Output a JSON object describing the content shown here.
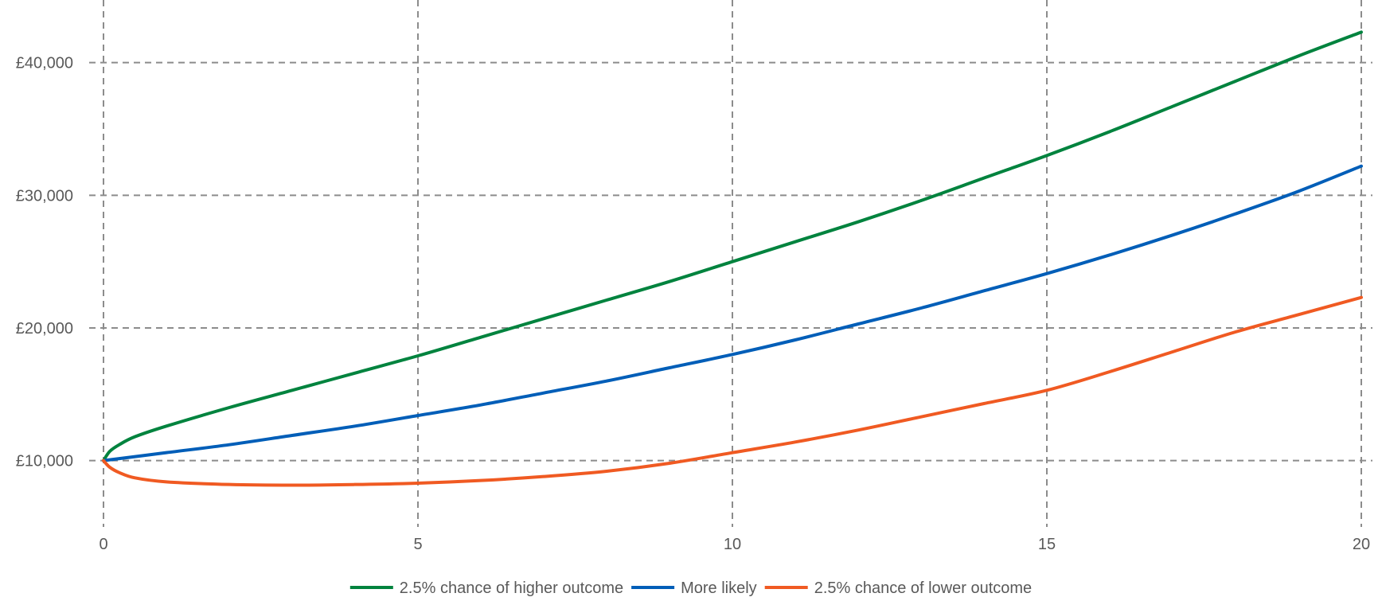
{
  "chart_data": {
    "type": "line",
    "title": "",
    "xlabel": "",
    "ylabel": "",
    "xlim": [
      0,
      20
    ],
    "ylim": [
      5000,
      44000
    ],
    "x_ticks": [
      0,
      5,
      10,
      15,
      20
    ],
    "x_tick_labels": [
      "0",
      "5",
      "10",
      "15",
      "20"
    ],
    "y_ticks": [
      10000,
      20000,
      30000,
      40000
    ],
    "y_tick_labels": [
      "£10,000",
      "£20,000",
      "£30,000",
      "£40,000"
    ],
    "grid": true,
    "grid_style": "dashed",
    "legend_position": "bottom-center",
    "series": [
      {
        "name": "2.5% chance of higher outcome",
        "color": "#00833E",
        "x": [
          0,
          0.1,
          0.25,
          0.5,
          1,
          2,
          3,
          4,
          5,
          6,
          7,
          8,
          9,
          10,
          11,
          12,
          13,
          14,
          15,
          16,
          17,
          18,
          19,
          20
        ],
        "y": [
          10000,
          10700,
          11200,
          11800,
          12600,
          14000,
          15300,
          16600,
          17900,
          19300,
          20700,
          22100,
          23500,
          25000,
          26500,
          28000,
          29600,
          31300,
          33000,
          34800,
          36700,
          38600,
          40500,
          42300
        ]
      },
      {
        "name": "More likely",
        "color": "#005EB8",
        "x": [
          0,
          1,
          2,
          3,
          4,
          5,
          6,
          7,
          8,
          9,
          10,
          11,
          12,
          13,
          14,
          15,
          16,
          17,
          18,
          19,
          20
        ],
        "y": [
          10000,
          10600,
          11200,
          11900,
          12600,
          13400,
          14200,
          15100,
          16000,
          17000,
          18000,
          19100,
          20300,
          21500,
          22800,
          24100,
          25500,
          27000,
          28600,
          30300,
          32200
        ]
      },
      {
        "name": "2.5% chance of lower outcome",
        "color": "#F05A22",
        "x": [
          0,
          0.1,
          0.25,
          0.5,
          1,
          2,
          3,
          4,
          5,
          6,
          7,
          8,
          9,
          10,
          11,
          12,
          13,
          14,
          15,
          16,
          17,
          18,
          19,
          20
        ],
        "y": [
          10000,
          9500,
          9100,
          8700,
          8400,
          8200,
          8150,
          8200,
          8300,
          8500,
          8800,
          9200,
          9800,
          10600,
          11400,
          12300,
          13300,
          14300,
          15300,
          16700,
          18200,
          19700,
          21000,
          22300
        ]
      }
    ]
  }
}
